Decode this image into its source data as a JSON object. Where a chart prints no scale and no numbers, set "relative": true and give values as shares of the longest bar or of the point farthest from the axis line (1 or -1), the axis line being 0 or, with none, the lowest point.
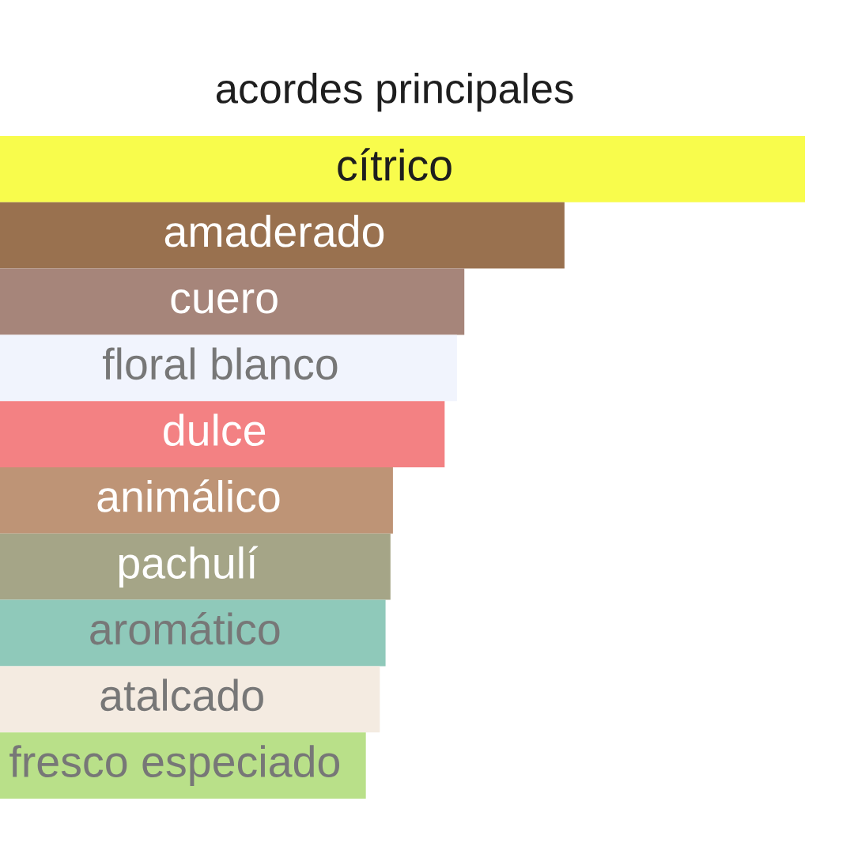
{
  "chart_data": {
    "type": "bar",
    "orientation": "horizontal",
    "relative": true,
    "title": "acordes principales",
    "categories": [
      "cítrico",
      "amaderado",
      "cuero",
      "floral blanco",
      "dulce",
      "animálico",
      "pachulí",
      "aromático",
      "atalcado",
      "fresco especiado"
    ],
    "values": [
      1,
      0.707,
      0.585,
      0.576,
      0.561,
      0.498,
      0.495,
      0.489,
      0.482,
      0.465
    ],
    "colors": [
      "#f8fc4c",
      "#99714f",
      "#a6857a",
      "#f1f4fd",
      "#f38183",
      "#be9476",
      "#a5a587",
      "#8fc9ba",
      "#f4ebe1",
      "#b9e089"
    ]
  }
}
